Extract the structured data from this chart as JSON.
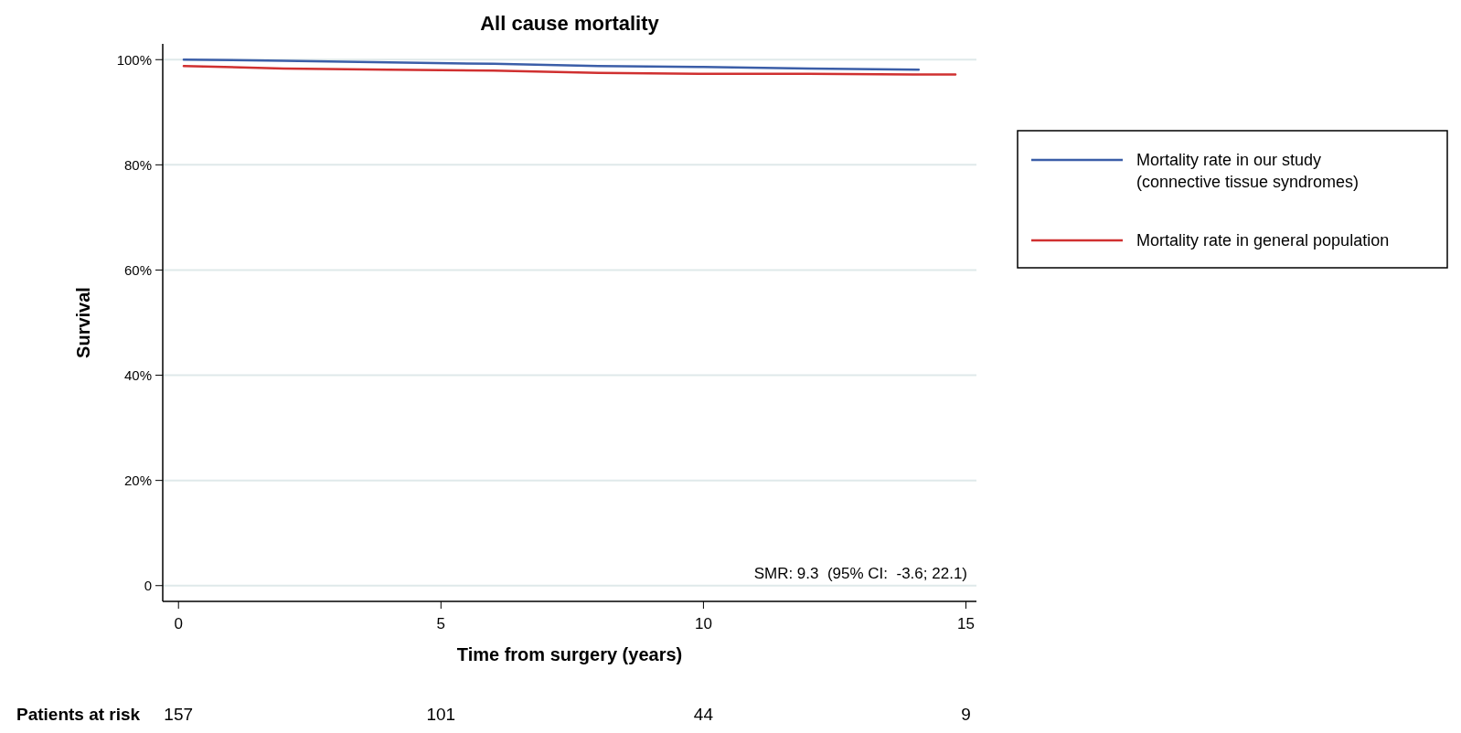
{
  "chart_data": {
    "type": "line",
    "title": "All cause mortality",
    "xlabel": "Time from surgery (years)",
    "ylabel": "Survival",
    "xlim": [
      -0.3,
      15.2
    ],
    "xticks": [
      0,
      5,
      10,
      15
    ],
    "ylim": [
      -3,
      103
    ],
    "yticks": [
      {
        "value": 0,
        "label": "0"
      },
      {
        "value": 20,
        "label": "20%"
      },
      {
        "value": 40,
        "label": "40%"
      },
      {
        "value": 60,
        "label": "60%"
      },
      {
        "value": 80,
        "label": "80%"
      },
      {
        "value": 100,
        "label": "100%"
      }
    ],
    "grid": "y",
    "legend": "right",
    "line_style": "solid",
    "series": [
      {
        "name": "Mortality rate in our study (connective tissue syndromes)",
        "color": "#3b5ea8",
        "x": [
          0.1,
          2,
          4,
          6,
          8,
          10,
          12,
          14.1
        ],
        "values": [
          100,
          99.8,
          99.5,
          99.2,
          98.8,
          98.6,
          98.3,
          98.1
        ]
      },
      {
        "name": "Mortality rate in general population",
        "color": "#d03030",
        "x": [
          0.1,
          2,
          4,
          6,
          8,
          10,
          12,
          14,
          14.8
        ],
        "values": [
          98.8,
          98.3,
          98.1,
          97.9,
          97.5,
          97.3,
          97.3,
          97.2,
          97.2
        ]
      }
    ],
    "annotations": [
      {
        "text": "SMR: 9.3  (95% CI:  -3.6; 22.1)"
      },
      {
        "text": "Patients at risk"
      },
      "157",
      "101",
      "44",
      "9"
    ]
  }
}
